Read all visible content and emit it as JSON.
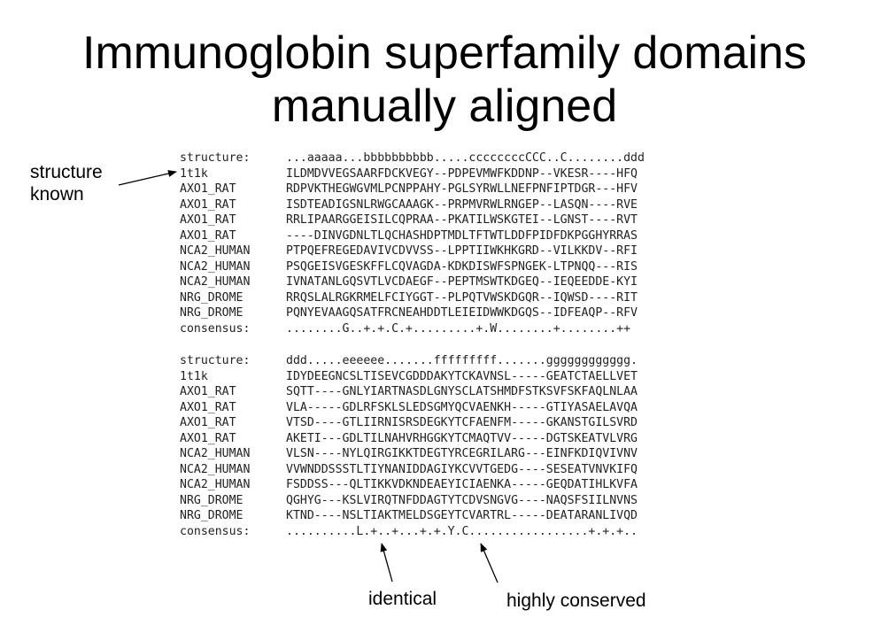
{
  "title": {
    "line1": "Immunoglobin superfamily domains",
    "line2": "manually aligned"
  },
  "blocks": [
    {
      "rows": [
        {
          "label": "structure:",
          "seq": "...aaaaa...bbbbbbbbbb.....ccccccccCCC..C........ddd"
        },
        {
          "label": "1t1k",
          "seq": "ILDMDVVEGSAARFDCKVEGY--PDPEVMWFKDDNP--VKESR----HFQ"
        },
        {
          "label": "AXO1_RAT",
          "seq": "RDPVKTHEGWGVMLPCNPPAHY-PGLSYRWLLNEFPNFIPTDGR---HFV"
        },
        {
          "label": "AXO1_RAT",
          "seq": "ISDTEADIGSNLRWGCAAAGK--PRPMVRWLRNGEP--LASQN----RVE"
        },
        {
          "label": "AXO1_RAT",
          "seq": "RRLIPAARGGEISILCQPRAA--PKATILWSKGTEI--LGNST----RVT"
        },
        {
          "label": "AXO1_RAT",
          "seq": "----DINVGDNLTLQCHASHDPTMDLTFTWTLDDFPIDFDKPGGHYRRAS"
        },
        {
          "label": "NCA2_HUMAN",
          "seq": "PTPQEFREGEDAVIVCDVVSS--LPPTIIWKHKGRD--VILKKDV--RFI"
        },
        {
          "label": "NCA2_HUMAN",
          "seq": "PSQGEISVGESKFFLCQVAGDA-KDKDISWFSPNGEK-LTPNQQ---RIS"
        },
        {
          "label": "NCA2_HUMAN",
          "seq": "IVNATANLGQSVTLVCDAEGF--PEPTMSWTKDGEQ--IEQEEDDE-KYI"
        },
        {
          "label": "NRG_DROME",
          "seq": "RRQSLALRGKRMELFCIYGGT--PLPQTVWSKDGQR--IQWSD----RIT"
        },
        {
          "label": "NRG_DROME",
          "seq": "PQNYEVAAGQSATFRCNEAHDDTLEIEIDWWKDGQS--IDFEAQP--RFV"
        },
        {
          "label": "consensus:",
          "seq": "........G..+.+.C.+.........+.W........+........++"
        }
      ]
    },
    {
      "rows": [
        {
          "label": "structure:",
          "seq": "ddd.....eeeeee.......fffffffff.......gggggggggggg."
        },
        {
          "label": "1t1k",
          "seq": "IDYDEEGNCSLTISEVCGDDDAKYTCKAVNSL-----GEATCTAELLVET"
        },
        {
          "label": "AXO1_RAT",
          "seq": "SQTT----GNLYIARTNASDLGNYSCLATSHMDFSTKSVFSKFAQLNLAA"
        },
        {
          "label": "AXO1_RAT",
          "seq": "VLA-----GDLRFSKLSLEDSGMYQCVAENKH-----GTIYASAELAVQA"
        },
        {
          "label": "AXO1_RAT",
          "seq": "VTSD----GTLIIRNISRSDEGKYTCFAENFM-----GKANSTGILSVRD"
        },
        {
          "label": "AXO1_RAT",
          "seq": "AKETI---GDLTILNAHVRHGGKYTCMAQTVV-----DGTSKEATVLVRG"
        },
        {
          "label": "NCA2_HUMAN",
          "seq": "VLSN----NYLQIRGIKKTDEGTYRCEGRILARG---EINFKDIQVIVNV"
        },
        {
          "label": "NCA2_HUMAN",
          "seq": "VVWNDDSSSTLTIYNANIDDAGIYKCVVTGEDG----SESEATVNVKIFQ"
        },
        {
          "label": "NCA2_HUMAN",
          "seq": "FSDDSS---QLTIKKVDKNDEAEYICIAENKA-----GEQDATIHLKVFA"
        },
        {
          "label": "NRG_DROME",
          "seq": "QGHYG---KSLVIRQTNFDDAGTYTCDVSNGVG----NAQSFSIILNVNS"
        },
        {
          "label": "NRG_DROME",
          "seq": "KTND----NSLTIAKTMELDSGEYTCVARTRL-----DEATARANLIVQD"
        },
        {
          "label": "consensus:",
          "seq": "..........L.+..+...+.+.Y.C.................+.+.+.."
        }
      ]
    }
  ],
  "annotations": {
    "structure_known": "structure\nknown",
    "identical": "identical",
    "highly_conserved": "highly conserved"
  }
}
